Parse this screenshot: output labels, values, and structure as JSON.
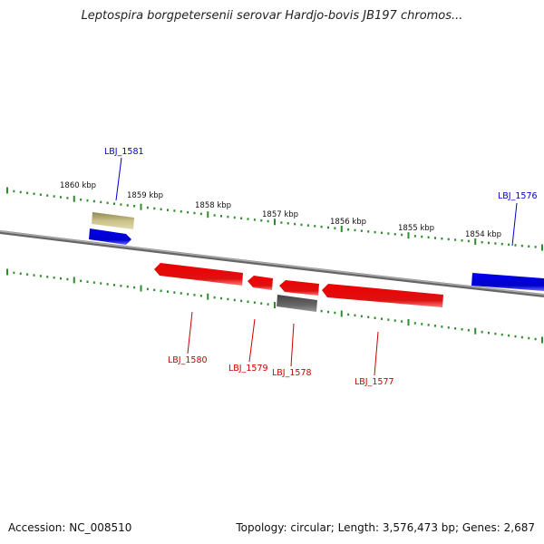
{
  "title": "Leptospira borgpetersenii serovar Hardjo-bovis JB197 chromos...",
  "footer": {
    "accession": "Accession: NC_008510",
    "topology": "Topology: circular; Length: 3,576,473 bp; Genes: 2,687"
  },
  "colors": {
    "backbone": "#888888",
    "ticks": "#2e8b2e",
    "forward_gene": "#0000ee",
    "reverse_gene": "#ee1111",
    "other_feature": "#bdb57a",
    "pseudo_feature": "#666666"
  },
  "scale_labels": [
    {
      "kbp": 1860,
      "text": "1860 kbp"
    },
    {
      "kbp": 1859,
      "text": "1859 kbp"
    },
    {
      "kbp": 1858,
      "text": "1858 kbp"
    },
    {
      "kbp": 1857,
      "text": "1857 kbp"
    },
    {
      "kbp": 1856,
      "text": "1856 kbp"
    },
    {
      "kbp": 1855,
      "text": "1855 kbp"
    },
    {
      "kbp": 1854,
      "text": "1854 kbp"
    }
  ],
  "genes": [
    {
      "label": "LBJ_1581",
      "strand": "+",
      "color": "blue"
    },
    {
      "label": "LBJ_1580",
      "strand": "-",
      "color": "red"
    },
    {
      "label": "LBJ_1579",
      "strand": "-",
      "color": "red"
    },
    {
      "label": "LBJ_1578",
      "strand": "-",
      "color": "red"
    },
    {
      "label": "LBJ_1577",
      "strand": "-",
      "color": "red"
    },
    {
      "label": "LBJ_1576",
      "strand": "+",
      "color": "blue"
    }
  ]
}
